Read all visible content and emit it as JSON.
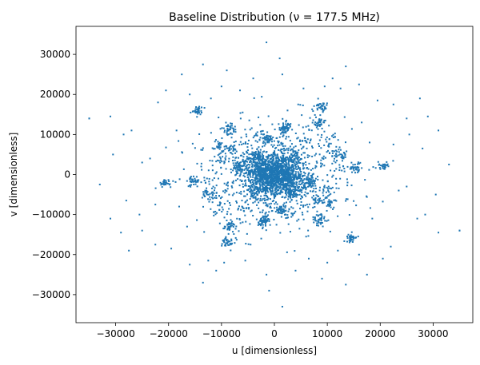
{
  "chart_data": {
    "type": "scatter",
    "title": "Baseline Distribution (ν = 177.5 MHz)",
    "xlabel": "u [dimensionless]",
    "ylabel": "v [dimensionless]",
    "xlim": [
      -37500,
      37500
    ],
    "ylim": [
      -37000,
      37000
    ],
    "xticks": [
      -30000,
      -20000,
      -10000,
      0,
      10000,
      20000,
      30000
    ],
    "yticks": [
      -30000,
      -20000,
      -10000,
      0,
      10000,
      20000,
      30000
    ],
    "grid": false,
    "legend": "none",
    "marker_color": "#1f77b4",
    "symmetric": true,
    "clusters": [
      {
        "u": 0,
        "v": 0,
        "spread": 2500,
        "count": 650
      },
      {
        "u": 0,
        "v": 0,
        "spread": 7000,
        "count": 450
      },
      {
        "u": 2000,
        "v": 11500,
        "spread": 700,
        "count": 22
      },
      {
        "u": -1500,
        "v": 9000,
        "spread": 700,
        "count": 20
      },
      {
        "u": -4000,
        "v": 5000,
        "spread": 800,
        "count": 25
      },
      {
        "u": 3500,
        "v": 4500,
        "spread": 800,
        "count": 25
      },
      {
        "u": 5500,
        "v": 8500,
        "spread": 700,
        "count": 15
      },
      {
        "u": -8500,
        "v": 11000,
        "spread": 600,
        "count": 20
      },
      {
        "u": -10500,
        "v": 7000,
        "spread": 700,
        "count": 22
      },
      {
        "u": -14500,
        "v": 16000,
        "spread": 600,
        "count": 18
      },
      {
        "u": 8500,
        "v": 17000,
        "spread": 600,
        "count": 18
      },
      {
        "u": 8500,
        "v": 13000,
        "spread": 600,
        "count": 18
      },
      {
        "u": 10500,
        "v": 8500,
        "spread": 700,
        "count": 15
      },
      {
        "u": 12500,
        "v": 4500,
        "spread": 700,
        "count": 18
      },
      {
        "u": 15500,
        "v": 1500,
        "spread": 600,
        "count": 15
      },
      {
        "u": 20500,
        "v": 2000,
        "spread": 600,
        "count": 15
      },
      {
        "u": -20500,
        "v": -2000,
        "spread": 600,
        "count": 15
      },
      {
        "u": -15000,
        "v": -1500,
        "spread": 700,
        "count": 18
      },
      {
        "u": -12500,
        "v": -5000,
        "spread": 700,
        "count": 18
      },
      {
        "u": -8500,
        "v": -13000,
        "spread": 600,
        "count": 16
      },
      {
        "u": -9000,
        "v": -17000,
        "spread": 600,
        "count": 18
      },
      {
        "u": 14500,
        "v": -16000,
        "spread": 600,
        "count": 16
      },
      {
        "u": 8500,
        "v": -11500,
        "spread": 700,
        "count": 18
      },
      {
        "u": 8500,
        "v": -6000,
        "spread": 700,
        "count": 20
      },
      {
        "u": 10000,
        "v": -4000,
        "spread": 700,
        "count": 18
      },
      {
        "u": -2000,
        "v": -11500,
        "spread": 700,
        "count": 20
      },
      {
        "u": 1500,
        "v": -9000,
        "spread": 700,
        "count": 18
      },
      {
        "u": 3000,
        "v": -4500,
        "spread": 800,
        "count": 25
      },
      {
        "u": -6500,
        "v": 2000,
        "spread": 800,
        "count": 25
      },
      {
        "u": 6500,
        "v": -2000,
        "spread": 800,
        "count": 25
      }
    ],
    "outliers": [
      {
        "u": -35000,
        "v": 14000
      },
      {
        "u": -31000,
        "v": 14500
      },
      {
        "u": -30500,
        "v": 5000
      },
      {
        "u": -28500,
        "v": 10000
      },
      {
        "u": -27000,
        "v": 11000
      },
      {
        "u": -25000,
        "v": 3000
      },
      {
        "u": -22000,
        "v": 18000
      },
      {
        "u": -20500,
        "v": 21000
      },
      {
        "u": -17500,
        "v": 25000
      },
      {
        "u": -16000,
        "v": 20000
      },
      {
        "u": -13500,
        "v": 27500
      },
      {
        "u": -10000,
        "v": 22000
      },
      {
        "u": -6500,
        "v": 21000
      },
      {
        "u": -4000,
        "v": 24000
      },
      {
        "u": 1000,
        "v": 29000
      },
      {
        "u": -1500,
        "v": 33000
      },
      {
        "u": 1500,
        "v": 25000
      },
      {
        "u": 5500,
        "v": 21500
      },
      {
        "u": 9500,
        "v": 22000
      },
      {
        "u": 12500,
        "v": 21500
      },
      {
        "u": 16000,
        "v": 22500
      },
      {
        "u": 19500,
        "v": 18500
      },
      {
        "u": 22500,
        "v": 17500
      },
      {
        "u": 25000,
        "v": 14000
      },
      {
        "u": 27500,
        "v": 19000
      },
      {
        "u": 29000,
        "v": 14500
      },
      {
        "u": 31000,
        "v": 11000
      },
      {
        "u": 25500,
        "v": 10000
      },
      {
        "u": 22500,
        "v": 7500
      },
      {
        "u": 28000,
        "v": 6500
      },
      {
        "u": 18000,
        "v": 8000
      },
      {
        "u": 33000,
        "v": 2500
      },
      {
        "u": 35000,
        "v": -14000
      },
      {
        "u": 16500,
        "v": 13000
      },
      {
        "u": -23500,
        "v": 4000
      },
      {
        "u": 13500,
        "v": 27000
      },
      {
        "u": -18500,
        "v": 11000
      },
      {
        "u": 4500,
        "v": 17500
      },
      {
        "u": -6000,
        "v": 15500
      },
      {
        "u": -12000,
        "v": 19000
      },
      {
        "u": 11000,
        "v": 24000
      },
      {
        "u": -9000,
        "v": 26000
      }
    ]
  }
}
